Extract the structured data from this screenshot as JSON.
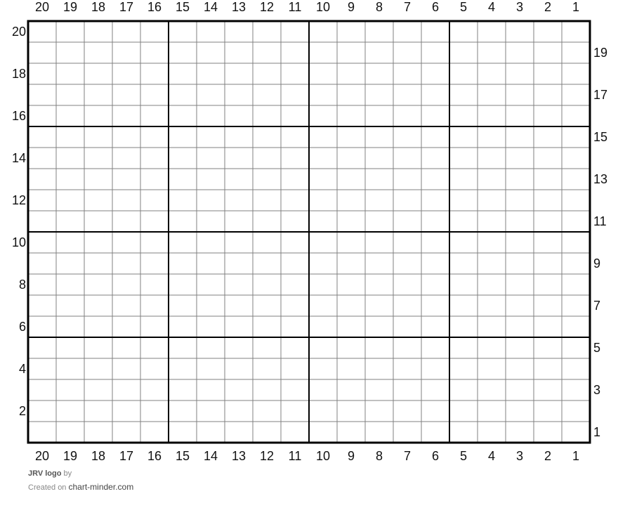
{
  "grid": {
    "columns": 20,
    "rows": 20,
    "major_every": 5,
    "column_labels": [
      "20",
      "19",
      "18",
      "17",
      "16",
      "15",
      "14",
      "13",
      "12",
      "11",
      "10",
      "9",
      "8",
      "7",
      "6",
      "5",
      "4",
      "3",
      "2",
      "1"
    ],
    "row_labels_left": [
      "20",
      "18",
      "16",
      "14",
      "12",
      "10",
      "8",
      "6",
      "4",
      "2"
    ],
    "row_labels_right": [
      "19",
      "17",
      "15",
      "13",
      "11",
      "9",
      "7",
      "5",
      "3",
      "1"
    ],
    "line_color": "#808080",
    "major_line_color": "#000000"
  },
  "footer": {
    "title": "JRV logo",
    "by": "by",
    "created_on": "Created on",
    "site": "chart-minder.com"
  }
}
